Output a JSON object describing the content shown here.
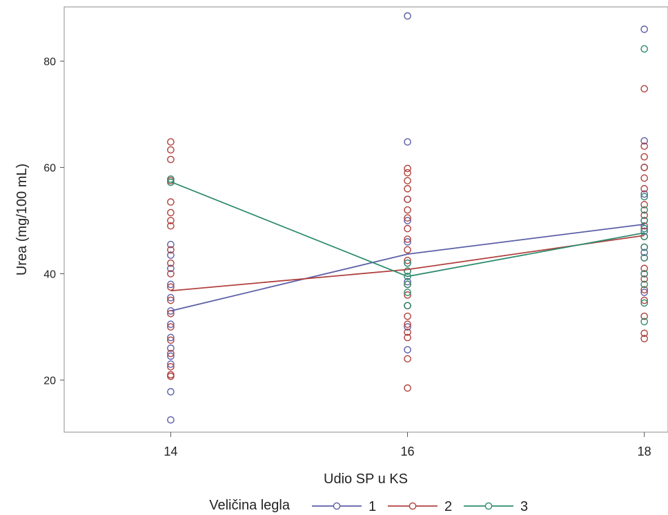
{
  "chart_data": {
    "type": "scatter",
    "xlabel": "Udio SP u KS",
    "ylabel": "Urea (mg/100 mL)",
    "x_ticks": [
      14,
      16,
      18
    ],
    "y_ticks": [
      20,
      40,
      60,
      80
    ],
    "xlim": [
      13.1,
      18.2
    ],
    "ylim": [
      10.2,
      90.2
    ],
    "legend": {
      "title": "Veličina legla",
      "position": "bottom"
    },
    "series": [
      {
        "name": "1",
        "color": "#5b5ea6",
        "line": [
          [
            14,
            33.0
          ],
          [
            16,
            43.7
          ],
          [
            18,
            49.3
          ]
        ],
        "points": [
          [
            14,
            12.5
          ],
          [
            14,
            17.8
          ],
          [
            14,
            23.0
          ],
          [
            14,
            24.5
          ],
          [
            14,
            26.0
          ],
          [
            14,
            28.0
          ],
          [
            14,
            30.5
          ],
          [
            14,
            33.0
          ],
          [
            14,
            35.5
          ],
          [
            14,
            38.0
          ],
          [
            14,
            41.0
          ],
          [
            14,
            43.5
          ],
          [
            14,
            45.5
          ],
          [
            16,
            88.5
          ],
          [
            16,
            64.8
          ],
          [
            16,
            25.7
          ],
          [
            16,
            30.0
          ],
          [
            16,
            34.0
          ],
          [
            16,
            38.5
          ],
          [
            16,
            42.0
          ],
          [
            16,
            46.0
          ],
          [
            16,
            50.0
          ],
          [
            16,
            54.0
          ],
          [
            18,
            86.0
          ],
          [
            18,
            65.0
          ],
          [
            18,
            60.0
          ],
          [
            18,
            55.0
          ],
          [
            18,
            50.0
          ],
          [
            18,
            48.0
          ],
          [
            18,
            44.0
          ],
          [
            18,
            40.0
          ],
          [
            18,
            36.5
          ]
        ]
      },
      {
        "name": "2",
        "color": "#b0413e",
        "line": [
          [
            14,
            36.8
          ],
          [
            16,
            40.8
          ],
          [
            18,
            47.2
          ]
        ],
        "points": [
          [
            14,
            64.8
          ],
          [
            14,
            63.3
          ],
          [
            14,
            61.5
          ],
          [
            14,
            57.5
          ],
          [
            14,
            53.5
          ],
          [
            14,
            51.5
          ],
          [
            14,
            50.0
          ],
          [
            14,
            49.0
          ],
          [
            14,
            44.5
          ],
          [
            14,
            42.0
          ],
          [
            14,
            40.0
          ],
          [
            14,
            37.5
          ],
          [
            14,
            35.0
          ],
          [
            14,
            32.5
          ],
          [
            14,
            30.0
          ],
          [
            14,
            27.5
          ],
          [
            14,
            25.0
          ],
          [
            14,
            22.5
          ],
          [
            14,
            21.0
          ],
          [
            14,
            20.7
          ],
          [
            16,
            59.8
          ],
          [
            16,
            59.0
          ],
          [
            16,
            57.5
          ],
          [
            16,
            56.0
          ],
          [
            16,
            54.0
          ],
          [
            16,
            52.0
          ],
          [
            16,
            50.5
          ],
          [
            16,
            48.5
          ],
          [
            16,
            46.5
          ],
          [
            16,
            44.5
          ],
          [
            16,
            42.5
          ],
          [
            16,
            40.5
          ],
          [
            16,
            38.0
          ],
          [
            16,
            36.0
          ],
          [
            16,
            34.0
          ],
          [
            16,
            32.0
          ],
          [
            16,
            30.5
          ],
          [
            16,
            29.0
          ],
          [
            16,
            28.0
          ],
          [
            16,
            24.0
          ],
          [
            16,
            18.5
          ],
          [
            18,
            74.8
          ],
          [
            18,
            64.0
          ],
          [
            18,
            62.0
          ],
          [
            18,
            60.0
          ],
          [
            18,
            58.0
          ],
          [
            18,
            56.0
          ],
          [
            18,
            53.0
          ],
          [
            18,
            51.0
          ],
          [
            18,
            49.0
          ],
          [
            18,
            47.0
          ],
          [
            18,
            45.0
          ],
          [
            18,
            43.0
          ],
          [
            18,
            41.0
          ],
          [
            18,
            39.0
          ],
          [
            18,
            37.0
          ],
          [
            18,
            35.0
          ],
          [
            18,
            32.0
          ],
          [
            18,
            28.8
          ],
          [
            18,
            27.8
          ]
        ]
      },
      {
        "name": "3",
        "color": "#2e8b6e",
        "line": [
          [
            14,
            57.3
          ],
          [
            16,
            39.5
          ],
          [
            18,
            47.7
          ]
        ],
        "points": [
          [
            14,
            57.8
          ],
          [
            14,
            57.2
          ],
          [
            16,
            42.0
          ],
          [
            16,
            40.5
          ],
          [
            16,
            39.5
          ],
          [
            16,
            38.0
          ],
          [
            16,
            36.5
          ],
          [
            16,
            34.0
          ],
          [
            18,
            82.3
          ],
          [
            18,
            54.5
          ],
          [
            18,
            52.0
          ],
          [
            18,
            50.0
          ],
          [
            18,
            48.5
          ],
          [
            18,
            47.0
          ],
          [
            18,
            45.0
          ],
          [
            18,
            43.0
          ],
          [
            18,
            40.0
          ],
          [
            18,
            38.0
          ],
          [
            18,
            34.5
          ],
          [
            18,
            31.0
          ]
        ]
      }
    ]
  }
}
